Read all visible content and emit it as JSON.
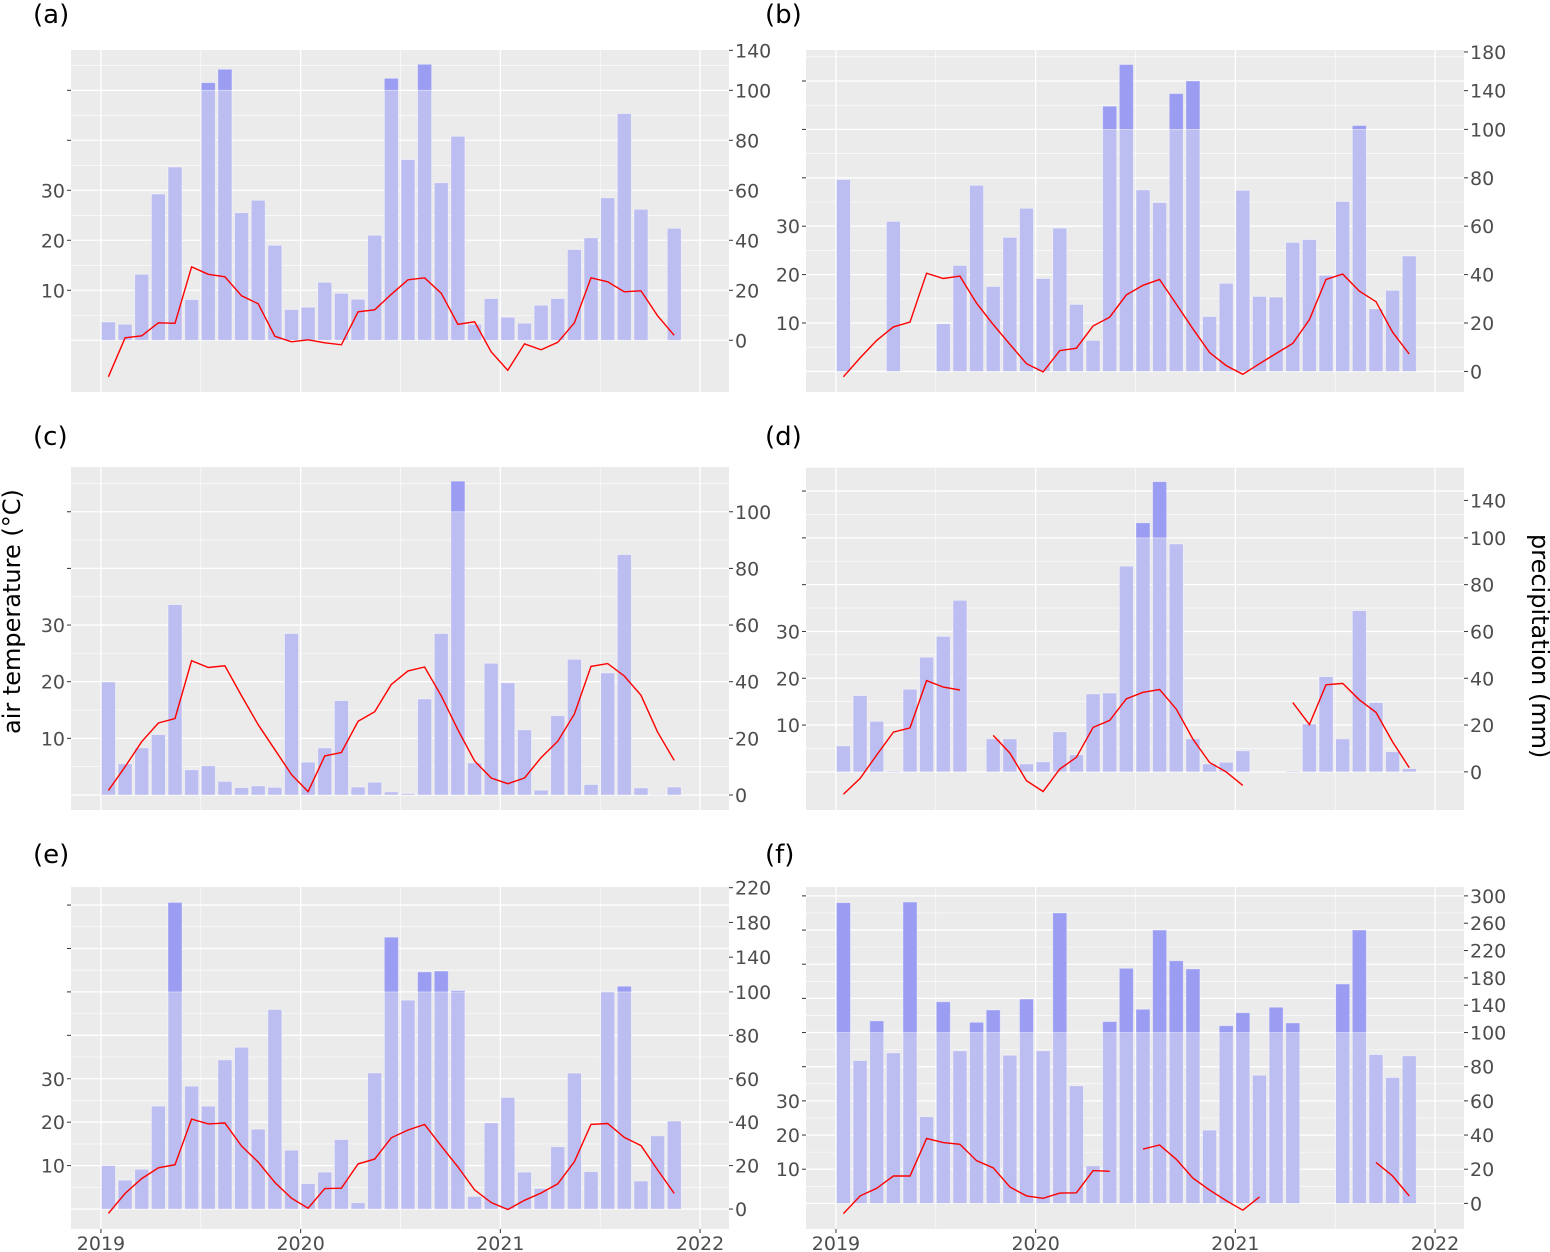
{
  "axis_titles": {
    "left": "air temperature (°C)",
    "right": "precipitation (mm)"
  },
  "colors": {
    "panel_bg": "#ebebeb",
    "grid": "#ffffff",
    "bar": "#bcbdf0",
    "bar_above_break": "#9b9df3",
    "temperature_line": "#ff0000",
    "tick_text": "#4d4d4d"
  },
  "chart_data": [
    {
      "label": "(a)",
      "type": "bar+line",
      "y_range_mm": [
        -20.7,
        140.3
      ],
      "precip_ticks": [
        0,
        20,
        40,
        60,
        80,
        100,
        140
      ],
      "temp_ticks_labeled": [
        10,
        20,
        30
      ],
      "temp_ticks_unlabeled": [
        40,
        50
      ],
      "precipitation_mm": [
        7.3,
        6.4,
        26.4,
        58.5,
        69.3,
        16.3,
        107.6,
        121,
        51,
        56,
        38,
        12.3,
        13.2,
        23.2,
        18.8,
        16.4,
        42,
        112,
        72.3,
        126,
        63,
        81.6,
        6.4,
        16.7,
        9.2,
        6.8,
        14,
        16.7,
        36.3,
        41,
        57,
        90.7,
        52.4,
        null,
        44.8
      ],
      "temperature_c": [
        -7.3,
        0.5,
        0.9,
        3.5,
        3.4,
        14.7,
        13.2,
        12.7,
        8.9,
        7.3,
        0.8,
        -0.3,
        0.1,
        -0.5,
        -0.9,
        5.7,
        6.1,
        9.2,
        12.1,
        12.5,
        9.4,
        3.2,
        3.7,
        -2.3,
        -6,
        -0.7,
        -1.9,
        -0.4,
        3.5,
        12.5,
        11.7,
        9.7,
        9.9,
        4.9,
        1
      ]
    },
    {
      "label": "(b)",
      "type": "bar+line",
      "y_range_mm": [
        -8.5,
        182
      ],
      "precip_ticks": [
        0,
        20,
        40,
        60,
        80,
        100,
        140,
        180
      ],
      "temp_ticks_labeled": [
        10,
        20,
        30
      ],
      "temp_ticks_unlabeled": [
        40,
        50,
        60
      ],
      "precipitation_mm": [
        79.3,
        null,
        null,
        62,
        null,
        null,
        19.7,
        43.8,
        76.9,
        35.1,
        55.4,
        67.4,
        38.4,
        59.2,
        27.7,
        12.8,
        124,
        167,
        75,
        69.8,
        137,
        150,
        22.7,
        36.4,
        74.8,
        31,
        30.7,
        53.3,
        54.5,
        39.7,
        70.2,
        104,
        25.9,
        33.5,
        47.7
      ],
      "temperature_c": [
        -1.1,
        2.8,
        6.4,
        9.2,
        10.2,
        20.3,
        19.2,
        19.7,
        14.1,
        9.7,
        5.6,
        1.6,
        -0.1,
        4.3,
        4.8,
        9.4,
        11.2,
        15.8,
        17.8,
        19,
        13.9,
        8.8,
        3.9,
        1.2,
        -0.6,
        1.6,
        3.7,
        5.8,
        10.7,
        19,
        20.1,
        16.6,
        14.4,
        8.1,
        3.6
      ]
    },
    {
      "label": "(c)",
      "type": "bar+line",
      "y_range_mm": [
        -5.3,
        139.5
      ],
      "precip_ticks": [
        0,
        20,
        40,
        60,
        80,
        100
      ],
      "temp_ticks_labeled": [
        10,
        20,
        30
      ],
      "temp_ticks_unlabeled": [
        40,
        50
      ],
      "precipitation_mm": [
        39.9,
        11,
        16.6,
        21.3,
        67.2,
        8.9,
        10.3,
        4.8,
        2.6,
        3.2,
        2.7,
        57,
        11.6,
        16.6,
        33.3,
        2.8,
        4.5,
        1.1,
        0.5,
        33.9,
        57,
        127,
        11.3,
        46.5,
        39.6,
        23,
        1.7,
        28,
        47.9,
        3.7,
        43.1,
        84.9,
        2.5,
        0.2,
        2.8
      ],
      "temperature_c": [
        0.8,
        5,
        9.4,
        12.7,
        13.5,
        23.7,
        22.5,
        22.8,
        17.5,
        12.4,
        8,
        3.6,
        0.6,
        6.9,
        7.5,
        13,
        14.7,
        19.5,
        21.9,
        22.6,
        17.5,
        11.5,
        6,
        3,
        2,
        3,
        6.6,
        9.5,
        14.3,
        22.7,
        23.2,
        21,
        17.6,
        11.1,
        6.1
      ]
    },
    {
      "label": "(d)",
      "type": "bar+line",
      "y_range_mm": [
        -16.3,
        175.7
      ],
      "precip_ticks": [
        0,
        20,
        40,
        60,
        80,
        100,
        140
      ],
      "temp_ticks_labeled": [
        10,
        20,
        30
      ],
      "temp_ticks_unlabeled": [
        40,
        50,
        60
      ],
      "precipitation_mm": [
        11.1,
        32.6,
        21.6,
        0.4,
        35.3,
        49,
        57.9,
        73.3,
        null,
        14.1,
        14.1,
        3.4,
        4.3,
        17.1,
        7.3,
        33.3,
        33.7,
        87.9,
        116,
        160,
        97.4,
        14.1,
        3.4,
        4.1,
        9,
        null,
        null,
        0.4,
        20.4,
        40.7,
        14.1,
        68.9,
        29.6,
        8.6,
        1.4
      ],
      "temperature_c": [
        -4.8,
        -1.4,
        3.6,
        8.5,
        9.4,
        19.5,
        18.1,
        17.5,
        null,
        7.8,
        4,
        -1.9,
        -4.2,
        0.6,
        3.1,
        9.5,
        11,
        15.6,
        17,
        17.6,
        13.4,
        7,
        2,
        0,
        -2.9,
        null,
        null,
        14.8,
        10.1,
        18.6,
        18.9,
        15.4,
        12.7,
        6.4,
        0.9
      ]
    },
    {
      "label": "(e)",
      "type": "bar+line",
      "y_range_mm": [
        -9.2,
        220.8
      ],
      "precip_ticks": [
        0,
        20,
        40,
        60,
        80,
        100,
        140,
        180,
        220
      ],
      "temp_ticks_labeled": [
        10,
        20,
        30
      ],
      "temp_ticks_unlabeled": [
        40,
        50,
        60,
        70
      ],
      "precipitation_mm": [
        20,
        13.3,
        18.3,
        47.4,
        203,
        56.6,
        47.4,
        68.7,
        74.5,
        36.8,
        91.9,
        27.1,
        11.7,
        17,
        32,
        2.9,
        62.7,
        163,
        96.2,
        123,
        124,
        101.5,
        5.8,
        39.7,
        51.4,
        17,
        9.5,
        28.7,
        62.6,
        17.2,
        100.2,
        106.5,
        12.9,
        33.7,
        40.5
      ],
      "temperature_c": [
        -1,
        3.6,
        7,
        9.5,
        10.2,
        20.7,
        19.6,
        19.8,
        14.5,
        10.8,
        6.1,
        2.5,
        0.2,
        4.7,
        4.8,
        10.4,
        11.5,
        16.4,
        18.2,
        19.5,
        14.5,
        9.7,
        4.4,
        1.5,
        -0.1,
        2,
        3.7,
        5.8,
        10.9,
        19.5,
        19.7,
        16.5,
        14.6,
        9,
        3.6
      ]
    },
    {
      "label": "(f)",
      "type": "bar+line",
      "y_range_mm": [
        -15,
        313
      ],
      "precip_ticks": [
        0,
        20,
        40,
        60,
        80,
        100,
        140,
        180,
        220,
        260,
        300
      ],
      "temp_ticks_labeled": [
        10,
        20,
        30
      ],
      "temp_ticks_unlabeled": [
        40,
        50,
        60,
        70,
        80,
        90
      ],
      "precipitation_mm": [
        290,
        83.6,
        117,
        88.1,
        291,
        50.7,
        145,
        89.3,
        115,
        133,
        86.7,
        149,
        89.3,
        275,
        68.8,
        22,
        116,
        194,
        134,
        250,
        205,
        193,
        42.9,
        110,
        129,
        75,
        137,
        114,
        null,
        null,
        171,
        250,
        87.1,
        73.7,
        86.4
      ],
      "temperature_c": [
        -3,
        2.2,
        4.4,
        8,
        8,
        19,
        17.8,
        17.3,
        12.5,
        10.4,
        4.8,
        2.2,
        1.5,
        3,
        3.1,
        9.6,
        9.4,
        null,
        15.9,
        17.1,
        12.9,
        7.4,
        3.9,
        0.8,
        -2,
        1.9,
        null,
        null,
        null,
        null,
        null,
        null,
        12,
        8,
        2.2
      ]
    }
  ],
  "x_axis": {
    "start_month": "2019-01",
    "n_months": 35,
    "year_ticks": [
      "2019",
      "2020",
      "2021",
      "2022"
    ],
    "x_range_years": [
      2018.85,
      2022.145
    ]
  },
  "scale_break": {
    "precip_break_mm": 100,
    "compression_above_break": 0.4,
    "temp_mm_per_degree_below_50": 2,
    "temp_mm_per_degree_above_50": 5
  }
}
